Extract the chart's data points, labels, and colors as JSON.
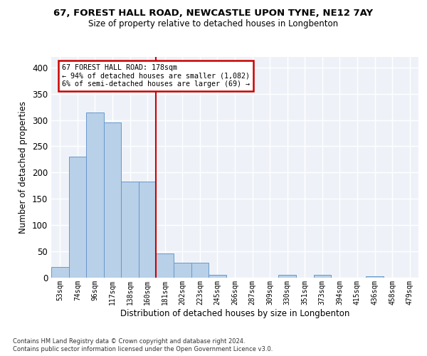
{
  "title": "67, FOREST HALL ROAD, NEWCASTLE UPON TYNE, NE12 7AY",
  "subtitle": "Size of property relative to detached houses in Longbenton",
  "xlabel": "Distribution of detached houses by size in Longbenton",
  "ylabel": "Number of detached properties",
  "bar_color": "#b8d0e8",
  "bar_edge_color": "#6699cc",
  "background_color": "#eef2f8",
  "grid_color": "#ffffff",
  "annotation_box_color": "#cc0000",
  "annotation_line1": "67 FOREST HALL ROAD: 178sqm",
  "annotation_line2": "← 94% of detached houses are smaller (1,082)",
  "annotation_line3": "6% of semi-detached houses are larger (69) →",
  "tick_labels": [
    "53sqm",
    "74sqm",
    "96sqm",
    "117sqm",
    "138sqm",
    "160sqm",
    "181sqm",
    "202sqm",
    "223sqm",
    "245sqm",
    "266sqm",
    "287sqm",
    "309sqm",
    "330sqm",
    "351sqm",
    "373sqm",
    "394sqm",
    "415sqm",
    "436sqm",
    "458sqm",
    "479sqm"
  ],
  "bar_values": [
    20,
    230,
    315,
    295,
    183,
    183,
    46,
    28,
    28,
    5,
    0,
    0,
    0,
    5,
    0,
    5,
    0,
    0,
    3,
    0,
    0
  ],
  "ylim": [
    0,
    420
  ],
  "yticks": [
    0,
    50,
    100,
    150,
    200,
    250,
    300,
    350,
    400
  ],
  "vline_x": 6.0,
  "vline_color": "#cc0000",
  "footnote1": "Contains HM Land Registry data © Crown copyright and database right 2024.",
  "footnote2": "Contains public sector information licensed under the Open Government Licence v3.0."
}
